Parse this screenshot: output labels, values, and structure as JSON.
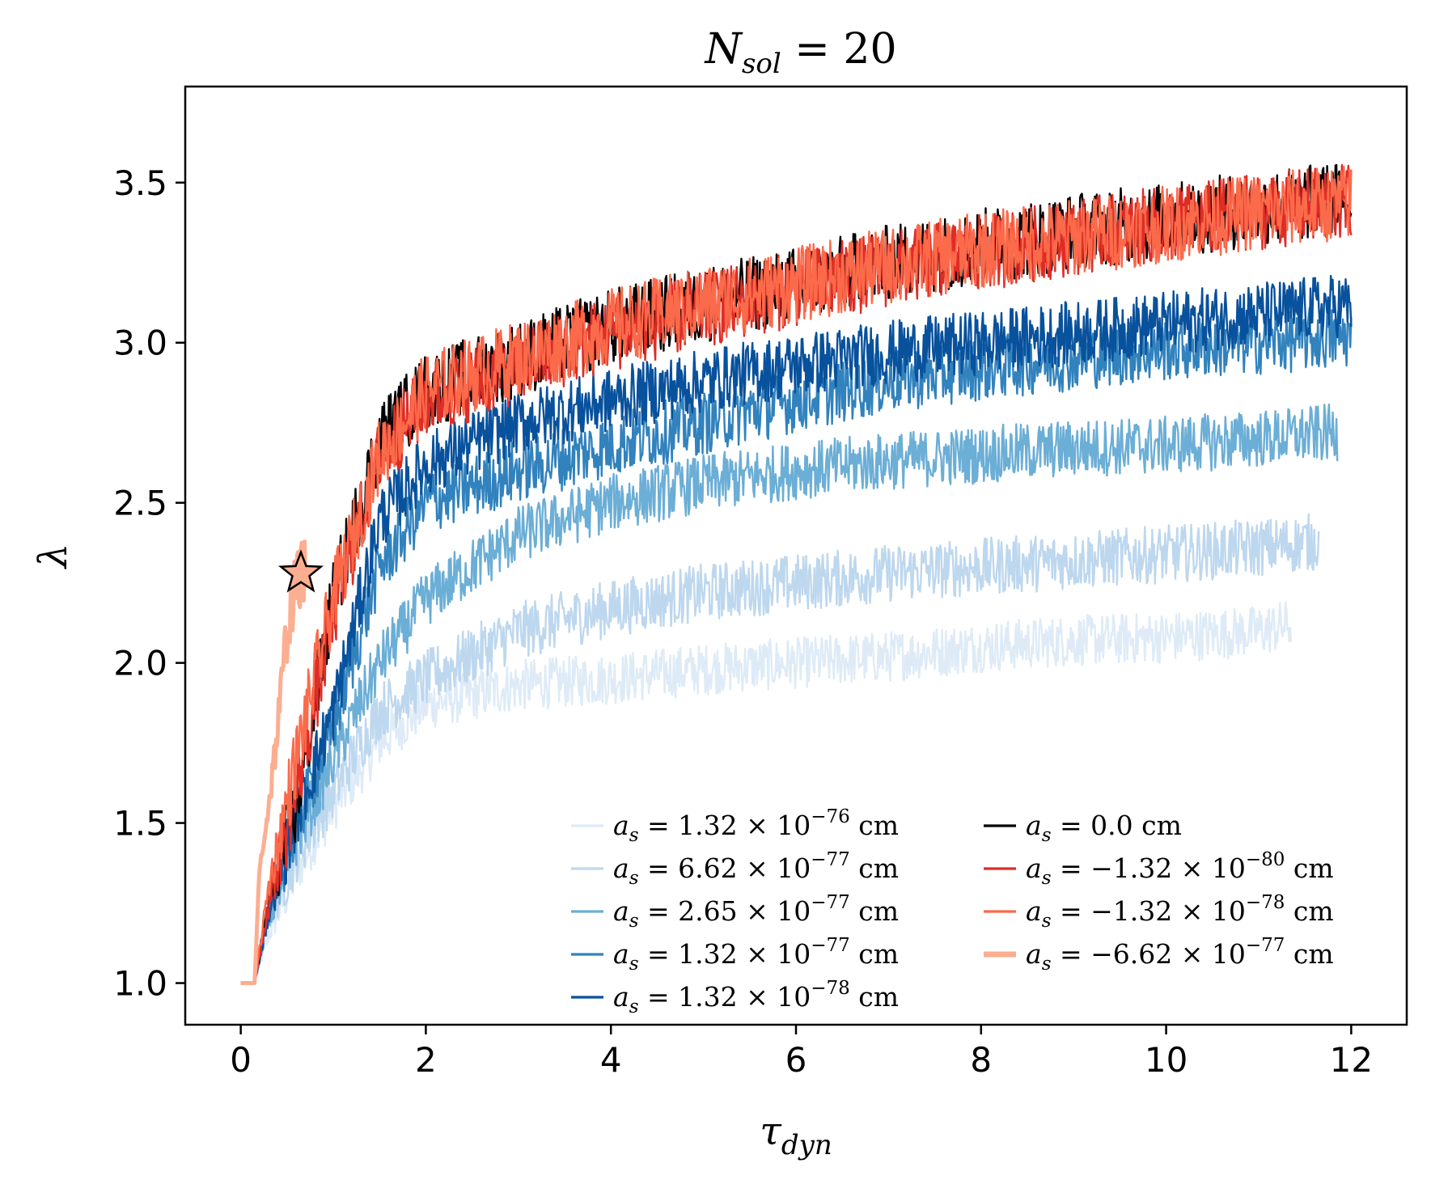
{
  "chart_data": {
    "type": "line",
    "title": "N_sol = 20",
    "title_parts": {
      "base": "N",
      "sub": "sol",
      "rest": " = 20"
    },
    "xlabel": "τ_dyn",
    "xlabel_parts": {
      "base": "τ",
      "sub": "dyn"
    },
    "ylabel": "λ",
    "xlim": [
      -0.6,
      12.6
    ],
    "ylim": [
      0.87,
      3.8
    ],
    "xticks": [
      0,
      2,
      4,
      6,
      8,
      10,
      12
    ],
    "yticks": [
      1.0,
      1.5,
      2.0,
      2.5,
      3.0,
      3.5
    ],
    "xtick_labels": [
      "0",
      "2",
      "4",
      "6",
      "8",
      "10",
      "12"
    ],
    "ytick_labels": [
      "1.0",
      "1.5",
      "2.0",
      "2.5",
      "3.0",
      "3.5"
    ],
    "grid": false,
    "legend_position": "bottom-right",
    "series": [
      {
        "name": "a_s = 1.32 × 10^-76 cm",
        "legend": {
          "value": "1.32 × 10",
          "exp": "−76",
          "unit": " cm"
        },
        "color": "#deebf7",
        "x_end": 11.35,
        "noise": 0.08,
        "curve": [
          [
            0,
            1.0
          ],
          [
            0.15,
            1.0
          ],
          [
            0.3,
            1.15
          ],
          [
            0.6,
            1.35
          ],
          [
            1.0,
            1.55
          ],
          [
            1.5,
            1.75
          ],
          [
            2,
            1.87
          ],
          [
            3,
            1.93
          ],
          [
            4,
            1.95
          ],
          [
            5,
            1.98
          ],
          [
            6,
            2.0
          ],
          [
            7,
            2.02
          ],
          [
            8,
            2.05
          ],
          [
            9,
            2.07
          ],
          [
            10,
            2.08
          ],
          [
            11,
            2.1
          ],
          [
            11.35,
            2.12
          ]
        ]
      },
      {
        "name": "a_s = 6.62 × 10^-77 cm",
        "legend": {
          "value": "6.62 × 10",
          "exp": "−77",
          "unit": " cm"
        },
        "color": "#bdd7ee",
        "x_end": 11.65,
        "noise": 0.09,
        "curve": [
          [
            0,
            1.0
          ],
          [
            0.15,
            1.0
          ],
          [
            0.3,
            1.2
          ],
          [
            0.6,
            1.4
          ],
          [
            1.0,
            1.6
          ],
          [
            1.5,
            1.85
          ],
          [
            2,
            1.95
          ],
          [
            3,
            2.1
          ],
          [
            4,
            2.17
          ],
          [
            5,
            2.22
          ],
          [
            6,
            2.25
          ],
          [
            7,
            2.28
          ],
          [
            8,
            2.3
          ],
          [
            9,
            2.32
          ],
          [
            10,
            2.34
          ],
          [
            11,
            2.36
          ],
          [
            11.65,
            2.38
          ]
        ]
      },
      {
        "name": "a_s = 2.65 × 10^-77 cm",
        "legend": {
          "value": "2.65 × 10",
          "exp": "−77",
          "unit": " cm"
        },
        "color": "#6baed6",
        "x_end": 11.85,
        "noise": 0.09,
        "curve": [
          [
            0,
            1.0
          ],
          [
            0.15,
            1.0
          ],
          [
            0.3,
            1.2
          ],
          [
            0.6,
            1.45
          ],
          [
            1.0,
            1.7
          ],
          [
            1.5,
            2.0
          ],
          [
            2,
            2.2
          ],
          [
            3,
            2.4
          ],
          [
            4,
            2.5
          ],
          [
            5,
            2.56
          ],
          [
            6,
            2.6
          ],
          [
            7,
            2.63
          ],
          [
            8,
            2.65
          ],
          [
            9,
            2.67
          ],
          [
            10,
            2.68
          ],
          [
            11,
            2.7
          ],
          [
            11.85,
            2.72
          ]
        ]
      },
      {
        "name": "a_s = 1.32 × 10^-77 cm",
        "legend": {
          "value": "1.32 × 10",
          "exp": "−77",
          "unit": " cm"
        },
        "color": "#3182bd",
        "x_end": 12.0,
        "noise": 0.1,
        "curve": [
          [
            0,
            1.0
          ],
          [
            0.15,
            1.0
          ],
          [
            0.3,
            1.22
          ],
          [
            0.6,
            1.5
          ],
          [
            1.0,
            1.8
          ],
          [
            1.5,
            2.3
          ],
          [
            2,
            2.5
          ],
          [
            3,
            2.6
          ],
          [
            4,
            2.68
          ],
          [
            5,
            2.75
          ],
          [
            6,
            2.82
          ],
          [
            7,
            2.88
          ],
          [
            8,
            2.92
          ],
          [
            9,
            2.95
          ],
          [
            10,
            2.98
          ],
          [
            11,
            3.0
          ],
          [
            12,
            3.02
          ]
        ]
      },
      {
        "name": "a_s = 1.32 × 10^-78 cm",
        "legend": {
          "value": "1.32 × 10",
          "exp": "−78",
          "unit": " cm"
        },
        "color": "#08519c",
        "x_end": 12.0,
        "noise": 0.1,
        "curve": [
          [
            0,
            1.0
          ],
          [
            0.15,
            1.0
          ],
          [
            0.3,
            1.22
          ],
          [
            0.6,
            1.52
          ],
          [
            1.0,
            1.85
          ],
          [
            1.5,
            2.45
          ],
          [
            2,
            2.62
          ],
          [
            3,
            2.75
          ],
          [
            4,
            2.82
          ],
          [
            5,
            2.88
          ],
          [
            6,
            2.93
          ],
          [
            7,
            2.97
          ],
          [
            8,
            3.0
          ],
          [
            9,
            3.03
          ],
          [
            10,
            3.06
          ],
          [
            11,
            3.09
          ],
          [
            12,
            3.12
          ]
        ]
      },
      {
        "name": "a_s = 0.0 cm",
        "legend": {
          "value": "0.0",
          "exp": "",
          "unit": " cm"
        },
        "color": "#000000",
        "x_end": 12.0,
        "noise": 0.12,
        "curve": [
          [
            0,
            1.0
          ],
          [
            0.15,
            1.0
          ],
          [
            0.3,
            1.25
          ],
          [
            0.6,
            1.55
          ],
          [
            1.0,
            2.2
          ],
          [
            1.5,
            2.7
          ],
          [
            2,
            2.85
          ],
          [
            3,
            2.95
          ],
          [
            4,
            3.05
          ],
          [
            5,
            3.12
          ],
          [
            6,
            3.18
          ],
          [
            7,
            3.25
          ],
          [
            8,
            3.3
          ],
          [
            9,
            3.35
          ],
          [
            10,
            3.38
          ],
          [
            11,
            3.42
          ],
          [
            12,
            3.45
          ]
        ]
      },
      {
        "name": "a_s = −1.32 × 10^-80 cm",
        "legend": {
          "value": "−1.32 × 10",
          "exp": "−80",
          "unit": " cm"
        },
        "color": "#de2d26",
        "x_end": 12.0,
        "noise": 0.12,
        "curve": [
          [
            0,
            1.0
          ],
          [
            0.15,
            1.0
          ],
          [
            0.3,
            1.25
          ],
          [
            0.6,
            1.6
          ],
          [
            1.0,
            2.15
          ],
          [
            1.5,
            2.65
          ],
          [
            2,
            2.82
          ],
          [
            3,
            2.93
          ],
          [
            4,
            3.03
          ],
          [
            5,
            3.1
          ],
          [
            6,
            3.17
          ],
          [
            7,
            3.23
          ],
          [
            8,
            3.28
          ],
          [
            9,
            3.33
          ],
          [
            10,
            3.37
          ],
          [
            11,
            3.41
          ],
          [
            12,
            3.44
          ]
        ]
      },
      {
        "name": "a_s = −1.32 × 10^-78 cm",
        "legend": {
          "value": "−1.32 × 10",
          "exp": "−78",
          "unit": " cm"
        },
        "color": "#fb6a4a",
        "x_end": 12.0,
        "noise": 0.12,
        "curve": [
          [
            0,
            1.0
          ],
          [
            0.15,
            1.0
          ],
          [
            0.3,
            1.3
          ],
          [
            0.6,
            1.7
          ],
          [
            1.0,
            2.2
          ],
          [
            1.5,
            2.65
          ],
          [
            2,
            2.85
          ],
          [
            3,
            2.95
          ],
          [
            4,
            3.05
          ],
          [
            5,
            3.12
          ],
          [
            6,
            3.18
          ],
          [
            7,
            3.24
          ],
          [
            8,
            3.29
          ],
          [
            9,
            3.33
          ],
          [
            10,
            3.37
          ],
          [
            11,
            3.41
          ],
          [
            12,
            3.44
          ]
        ]
      },
      {
        "name": "a_s = −6.62 × 10^-77 cm",
        "legend": {
          "value": "−6.62 × 10",
          "exp": "−77",
          "unit": " cm"
        },
        "color": "#fcae91",
        "x_end": 0.7,
        "noise": 0.1,
        "thick": true,
        "curve": [
          [
            0,
            1.0
          ],
          [
            0.15,
            1.0
          ],
          [
            0.2,
            1.35
          ],
          [
            0.3,
            1.55
          ],
          [
            0.4,
            1.8
          ],
          [
            0.5,
            2.1
          ],
          [
            0.6,
            2.25
          ],
          [
            0.7,
            2.3
          ]
        ]
      }
    ],
    "marker": {
      "shape": "star",
      "x": 0.65,
      "y": 2.28,
      "color": "#fcae91"
    }
  }
}
